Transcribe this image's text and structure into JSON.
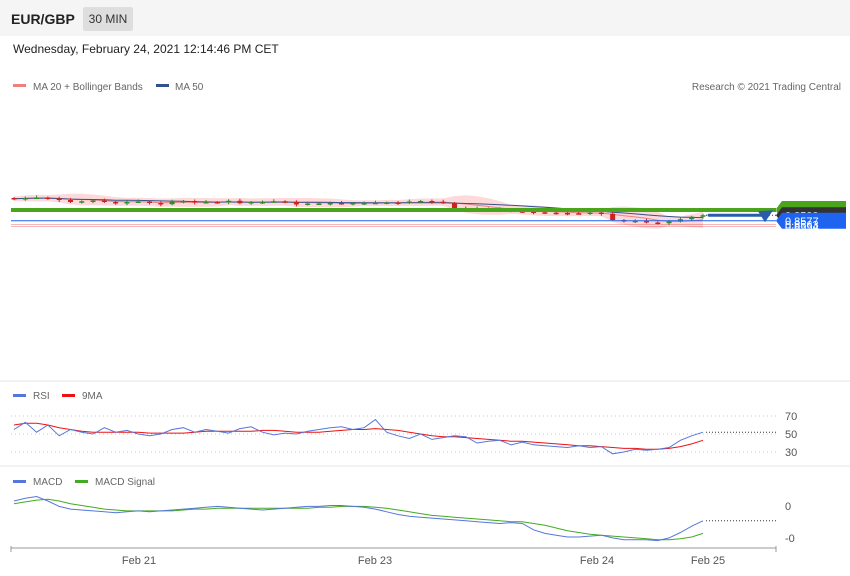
{
  "header": {
    "symbol": "EUR/GBP",
    "timeframe": "30 MIN",
    "datetime": "Wednesday, February 24, 2021 12:14:46 PM CET"
  },
  "colors": {
    "candle_up": "#2e8b2e",
    "candle_down": "#cc2222",
    "ma20": "#f08080",
    "bands_fill": "#fdd9d9",
    "ma50": "#33508f",
    "resistance": "#4aa51c",
    "support_blue": "#1e64f0",
    "support_red": "#e03030",
    "current_price": "#333333",
    "rsi": "#5577dd",
    "rsi_ma": "#ee1111",
    "macd": "#5577dd",
    "macd_signal": "#44aa22",
    "arrow": "#2a5caa"
  },
  "chart_data": {
    "type": "candlestick",
    "legend": [
      {
        "label": "MA 20 + Bollinger Bands",
        "icon": "line-swatch"
      },
      {
        "label": "MA 50",
        "icon": "line-swatch"
      }
    ],
    "credit": "Research © 2021 Trading Central",
    "x_ticks": [
      "Feb 21",
      "Feb 23",
      "Feb 24",
      "Feb 25"
    ],
    "current_price": 0.8599,
    "levels": [
      {
        "value": 0.8624,
        "kind": "resistance",
        "label": "0.8624"
      },
      {
        "value": 0.8616,
        "kind": "resistance",
        "label": "0.8616"
      },
      {
        "value": 0.8599,
        "kind": "current",
        "label": "0.8599"
      },
      {
        "value": 0.8577,
        "kind": "support",
        "label": "0.8577"
      },
      {
        "value": 0.8563,
        "kind": "support-minor",
        "label": "0.8563"
      },
      {
        "value": 0.8554,
        "kind": "support-minor",
        "label": "0.8554"
      }
    ],
    "forecast_arrow": {
      "from": 0.8599,
      "to": 0.8623
    },
    "price_series": [
      0.8665,
      0.8668,
      0.867,
      0.8667,
      0.866,
      0.8652,
      0.8655,
      0.8658,
      0.8652,
      0.8647,
      0.8652,
      0.8654,
      0.8648,
      0.8643,
      0.8653,
      0.8656,
      0.865,
      0.8652,
      0.8651,
      0.8657,
      0.8647,
      0.8652,
      0.8652,
      0.8655,
      0.8653,
      0.8642,
      0.8646,
      0.8646,
      0.8648,
      0.8645,
      0.8648,
      0.8648,
      0.8649,
      0.865,
      0.8648,
      0.8654,
      0.8656,
      0.8653,
      0.8648,
      0.8628,
      0.8624,
      0.8626,
      0.8624,
      0.862,
      0.8615,
      0.8614,
      0.8611,
      0.8609,
      0.8608,
      0.8607,
      0.8606,
      0.861,
      0.8605,
      0.858,
      0.8576,
      0.8577,
      0.857,
      0.8567,
      0.8574,
      0.8583,
      0.8593,
      0.8599
    ],
    "rsi": {
      "legend": [
        "RSI",
        "9MA"
      ],
      "levels": [
        70,
        50,
        30
      ],
      "rsi_values": [
        55,
        63,
        52,
        60,
        48,
        55,
        52,
        50,
        57,
        52,
        54,
        50,
        48,
        50,
        55,
        57,
        52,
        55,
        53,
        51,
        56,
        58,
        52,
        49,
        51,
        50,
        53,
        55,
        57,
        58,
        55,
        57,
        66,
        52,
        48,
        45,
        50,
        44,
        46,
        48,
        47,
        40,
        42,
        43,
        38,
        41,
        38,
        37,
        36,
        35,
        37,
        35,
        36,
        28,
        30,
        33,
        32,
        33,
        35,
        43,
        48,
        52
      ],
      "ma_values": [
        60,
        62,
        62,
        60,
        57,
        55,
        53,
        52,
        52,
        52,
        52,
        52,
        51,
        51,
        51,
        51,
        52,
        53,
        53,
        53,
        53,
        53,
        54,
        54,
        53,
        52,
        52,
        52,
        53,
        54,
        55,
        55,
        56,
        55,
        54,
        52,
        50,
        48,
        47,
        47,
        46,
        45,
        44,
        43,
        42,
        42,
        41,
        40,
        39,
        38,
        37,
        37,
        36,
        35,
        34,
        34,
        33,
        33,
        34,
        36,
        39,
        43
      ]
    },
    "macd": {
      "legend": [
        "MACD",
        "MACD Signal"
      ],
      "y_ticks": [
        "0",
        "-0"
      ],
      "macd_values": [
        10,
        13,
        15,
        10,
        4,
        1,
        0,
        -1,
        -2,
        -3,
        -2,
        -1,
        -2,
        -1,
        0,
        1,
        2,
        3,
        4,
        3,
        2,
        1,
        0,
        1,
        2,
        3,
        4,
        4,
        5,
        5,
        4,
        3,
        1,
        -2,
        -5,
        -7,
        -8,
        -9,
        -10,
        -11,
        -12,
        -13,
        -14,
        -15,
        -14,
        -15,
        -22,
        -26,
        -28,
        -30,
        -30,
        -29,
        -28,
        -31,
        -33,
        -33,
        -33,
        -34,
        -31,
        -25,
        -18,
        -12
      ],
      "signal_values": [
        7,
        9,
        11,
        12,
        10,
        7,
        5,
        3,
        1,
        0,
        -1,
        -1,
        -1,
        -1,
        -1,
        0,
        1,
        1,
        2,
        2,
        2,
        2,
        2,
        2,
        2,
        2,
        2,
        3,
        3,
        4,
        4,
        4,
        3,
        2,
        0,
        -2,
        -4,
        -6,
        -7,
        -8,
        -9,
        -10,
        -11,
        -12,
        -13,
        -13,
        -15,
        -17,
        -20,
        -23,
        -25,
        -27,
        -28,
        -29,
        -30,
        -31,
        -32,
        -33,
        -33,
        -32,
        -30,
        -26
      ]
    }
  }
}
